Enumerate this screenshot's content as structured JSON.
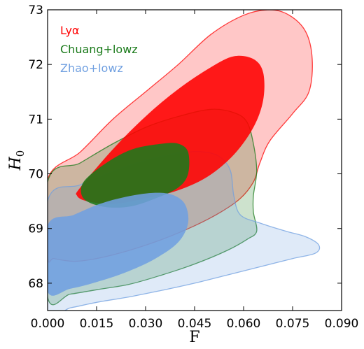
{
  "chart_data": {
    "type": "contour",
    "xlabel": "F",
    "ylabel": "H",
    "ylabel_sub": "0",
    "xlim": [
      0.0,
      0.09
    ],
    "ylim": [
      67.5,
      73.0
    ],
    "xticks": [
      "0.000",
      "0.015",
      "0.030",
      "0.045",
      "0.060",
      "0.075",
      "0.090"
    ],
    "yticks": [
      "68",
      "69",
      "70",
      "71",
      "72",
      "73"
    ],
    "legend_position": "top-left",
    "grid": false,
    "series": [
      {
        "name": "Lyα",
        "color": "#ff0000",
        "outer_contour": [
          [
            0.0,
            69.9
          ],
          [
            0.01,
            70.4
          ],
          [
            0.02,
            71.0
          ],
          [
            0.03,
            71.5
          ],
          [
            0.04,
            72.0
          ],
          [
            0.05,
            72.55
          ],
          [
            0.06,
            72.9
          ],
          [
            0.068,
            73.0
          ],
          [
            0.074,
            72.9
          ],
          [
            0.079,
            72.6
          ],
          [
            0.081,
            72.1
          ],
          [
            0.08,
            71.5
          ],
          [
            0.075,
            71.1
          ],
          [
            0.068,
            70.6
          ],
          [
            0.065,
            70.2
          ],
          [
            0.063,
            69.85
          ],
          [
            0.059,
            69.55
          ],
          [
            0.053,
            69.3
          ],
          [
            0.045,
            69.05
          ],
          [
            0.035,
            68.8
          ],
          [
            0.025,
            68.6
          ],
          [
            0.015,
            68.45
          ],
          [
            0.008,
            68.4
          ],
          [
            0.002,
            68.45
          ],
          [
            0.0,
            68.5
          ]
        ],
        "inner_contour": [
          [
            0.01,
            69.75
          ],
          [
            0.02,
            70.45
          ],
          [
            0.03,
            71.05
          ],
          [
            0.04,
            71.55
          ],
          [
            0.05,
            71.95
          ],
          [
            0.057,
            72.15
          ],
          [
            0.063,
            72.1
          ],
          [
            0.066,
            71.85
          ],
          [
            0.066,
            71.35
          ],
          [
            0.063,
            70.85
          ],
          [
            0.057,
            70.35
          ],
          [
            0.049,
            69.95
          ],
          [
            0.04,
            69.7
          ],
          [
            0.03,
            69.55
          ],
          [
            0.02,
            69.45
          ],
          [
            0.012,
            69.5
          ],
          [
            0.009,
            69.6
          ]
        ]
      },
      {
        "name": "Chuang+lowz",
        "color": "#1a7a1a",
        "outer_contour": [
          [
            0.0,
            69.85
          ],
          [
            0.01,
            70.2
          ],
          [
            0.02,
            70.55
          ],
          [
            0.03,
            70.85
          ],
          [
            0.04,
            71.05
          ],
          [
            0.05,
            71.18
          ],
          [
            0.057,
            71.12
          ],
          [
            0.061,
            70.95
          ],
          [
            0.063,
            70.55
          ],
          [
            0.064,
            70.05
          ],
          [
            0.063,
            69.6
          ],
          [
            0.063,
            69.3
          ],
          [
            0.064,
            68.95
          ],
          [
            0.061,
            68.8
          ],
          [
            0.055,
            68.6
          ],
          [
            0.045,
            68.35
          ],
          [
            0.035,
            68.15
          ],
          [
            0.025,
            67.98
          ],
          [
            0.015,
            67.88
          ],
          [
            0.007,
            67.8
          ],
          [
            0.0,
            67.75
          ]
        ],
        "inner_contour": [
          [
            0.011,
            69.85
          ],
          [
            0.018,
            70.2
          ],
          [
            0.026,
            70.45
          ],
          [
            0.035,
            70.55
          ],
          [
            0.04,
            70.55
          ],
          [
            0.043,
            70.4
          ],
          [
            0.043,
            70.0
          ],
          [
            0.04,
            69.75
          ],
          [
            0.033,
            69.55
          ],
          [
            0.025,
            69.4
          ],
          [
            0.017,
            69.4
          ],
          [
            0.011,
            69.55
          ]
        ]
      },
      {
        "name": "Zhao+lowz",
        "color": "#6f9fe0",
        "outer_contour": [
          [
            0.0,
            69.5
          ],
          [
            0.01,
            69.8
          ],
          [
            0.02,
            70.05
          ],
          [
            0.03,
            70.25
          ],
          [
            0.04,
            70.38
          ],
          [
            0.048,
            70.4
          ],
          [
            0.053,
            70.3
          ],
          [
            0.056,
            70.05
          ],
          [
            0.057,
            69.6
          ],
          [
            0.059,
            69.25
          ],
          [
            0.065,
            69.1
          ],
          [
            0.073,
            68.95
          ],
          [
            0.079,
            68.85
          ],
          [
            0.083,
            68.7
          ],
          [
            0.082,
            68.55
          ],
          [
            0.075,
            68.45
          ],
          [
            0.065,
            68.3
          ],
          [
            0.055,
            68.15
          ],
          [
            0.045,
            68.0
          ],
          [
            0.035,
            67.87
          ],
          [
            0.025,
            67.75
          ],
          [
            0.015,
            67.65
          ],
          [
            0.007,
            67.55
          ],
          [
            0.0,
            67.5
          ]
        ],
        "inner_contour": [
          [
            0.0,
            69.05
          ],
          [
            0.008,
            69.25
          ],
          [
            0.016,
            69.45
          ],
          [
            0.024,
            69.58
          ],
          [
            0.032,
            69.65
          ],
          [
            0.038,
            69.62
          ],
          [
            0.042,
            69.45
          ],
          [
            0.043,
            69.1
          ],
          [
            0.04,
            68.75
          ],
          [
            0.033,
            68.45
          ],
          [
            0.024,
            68.2
          ],
          [
            0.015,
            68.02
          ],
          [
            0.007,
            67.9
          ],
          [
            0.0,
            67.85
          ]
        ]
      }
    ]
  }
}
